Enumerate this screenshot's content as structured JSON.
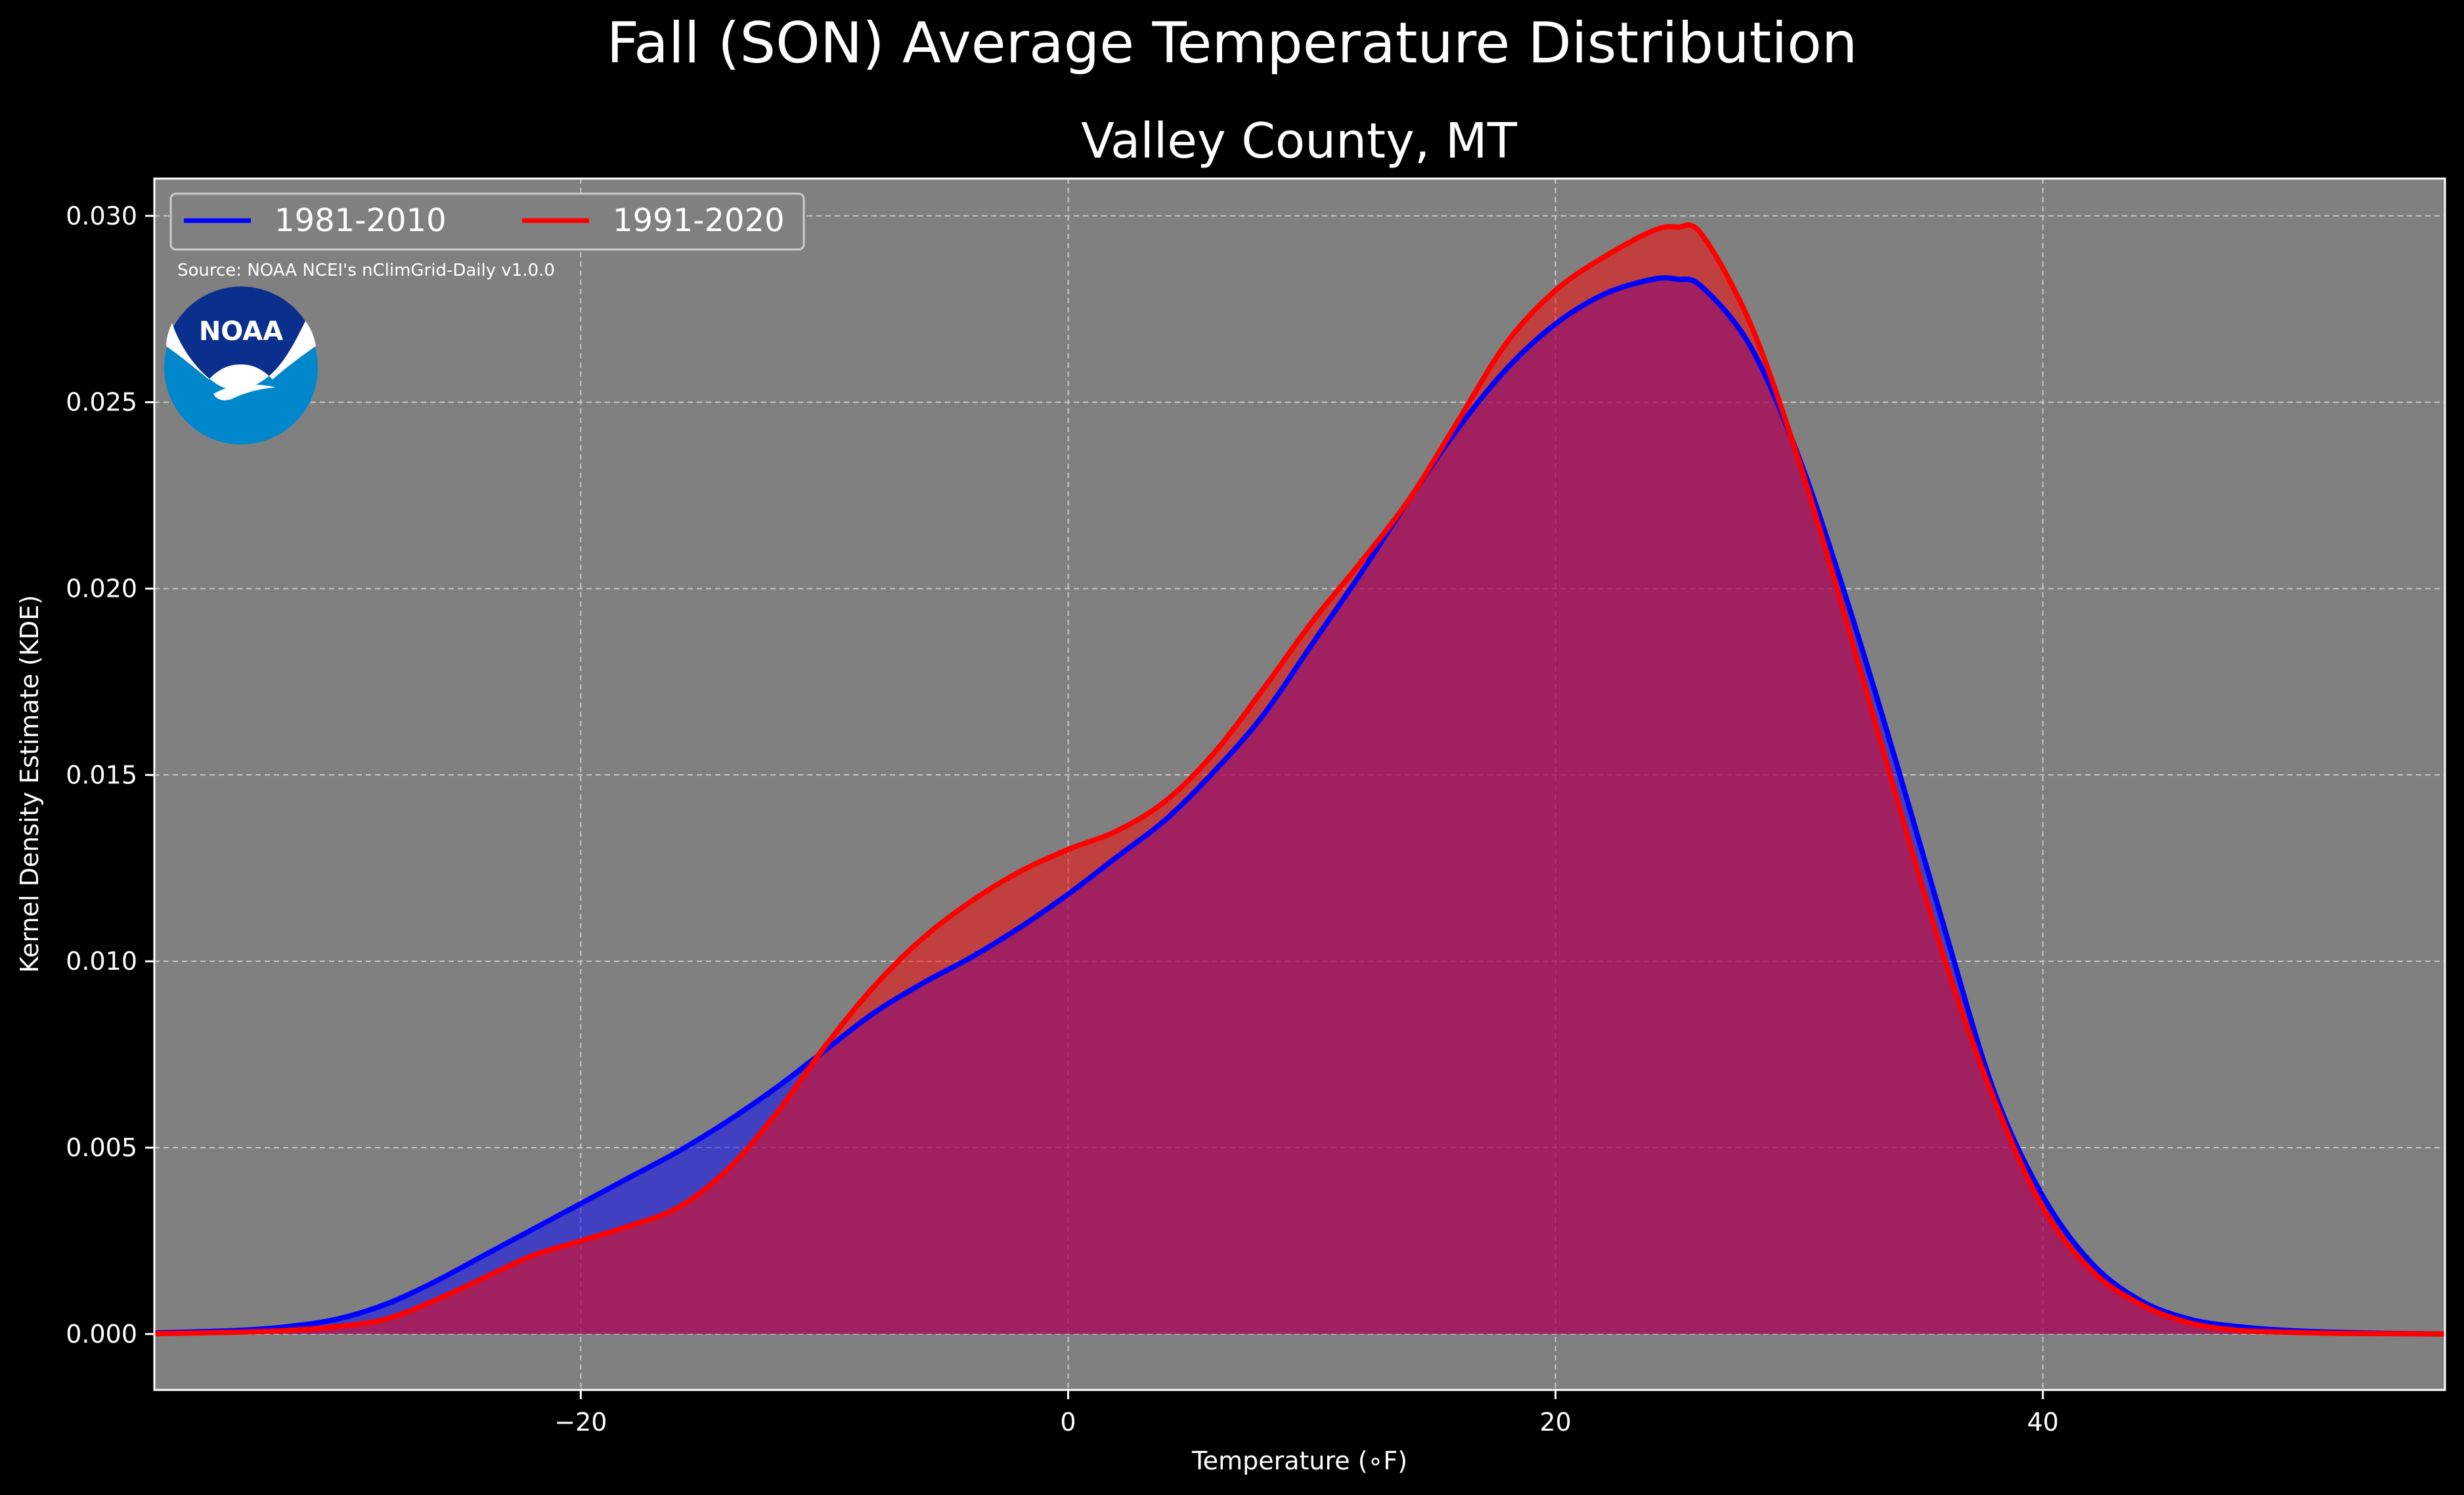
{
  "chart_data": {
    "type": "area",
    "title": "Fall (SON) Average Temperature Distribution",
    "subtitle": "Valley County, MT",
    "xlabel": "Temperature (∘F)",
    "ylabel": "Kernel Density Estimate (KDE)",
    "xlim": [
      -37.5,
      56.5
    ],
    "ylim": [
      -0.0015,
      0.031
    ],
    "xticks": [
      -20,
      0,
      20,
      40
    ],
    "xtick_labels": [
      "−20",
      "0",
      "20",
      "40"
    ],
    "yticks": [
      0.0,
      0.005,
      0.01,
      0.015,
      0.02,
      0.025,
      0.03
    ],
    "ytick_labels": [
      "0.000",
      "0.005",
      "0.010",
      "0.015",
      "0.020",
      "0.025",
      "0.030"
    ],
    "grid": true,
    "legend_position": "top-left",
    "plot_background": "#808080",
    "figure_background": "#000000",
    "annotation": "Source: NOAA NCEI's nClimGrid-Daily v1.0.0",
    "logo": {
      "text": "NOAA",
      "icon": "noaa-logo-icon"
    },
    "x": [
      -37.5,
      -34,
      -32,
      -30,
      -28,
      -26,
      -24,
      -22,
      -20,
      -18,
      -16,
      -14,
      -12,
      -10,
      -8,
      -6,
      -4,
      -2,
      0,
      2,
      4,
      6,
      8,
      10,
      12,
      14,
      16,
      18,
      20,
      22,
      24,
      25,
      26,
      28,
      30,
      32,
      34,
      36,
      38,
      40,
      42,
      44,
      46,
      48,
      50,
      52,
      54,
      56.5
    ],
    "series": [
      {
        "name": "1981-2010",
        "color": "#0000ff",
        "fill": "#0000ff",
        "values": [
          3e-05,
          0.0001,
          0.0002,
          0.0004,
          0.0008,
          0.0014,
          0.0021,
          0.0028,
          0.0035,
          0.0042,
          0.0049,
          0.0057,
          0.0066,
          0.0076,
          0.0086,
          0.0094,
          0.0101,
          0.0109,
          0.0118,
          0.0128,
          0.0138,
          0.0151,
          0.0166,
          0.0185,
          0.0204,
          0.0224,
          0.0243,
          0.0259,
          0.0271,
          0.0279,
          0.0283,
          0.0283,
          0.0281,
          0.0265,
          0.0235,
          0.0196,
          0.0153,
          0.0108,
          0.0065,
          0.0037,
          0.0019,
          0.0009,
          0.0004,
          0.0002,
          0.0001,
          5e-05,
          2e-05,
          0.0
        ]
      },
      {
        "name": "1991-2020",
        "color": "#ff0000",
        "fill": "#ff0000",
        "values": [
          1e-05,
          5e-05,
          0.0001,
          0.0002,
          0.0004,
          0.0009,
          0.0015,
          0.0021,
          0.0025,
          0.0029,
          0.0034,
          0.0044,
          0.0059,
          0.0077,
          0.0093,
          0.0106,
          0.0116,
          0.0124,
          0.013,
          0.0135,
          0.0143,
          0.0156,
          0.0173,
          0.0191,
          0.0207,
          0.0224,
          0.0245,
          0.0266,
          0.028,
          0.0289,
          0.0296,
          0.0297,
          0.0295,
          0.0271,
          0.0234,
          0.019,
          0.0144,
          0.01,
          0.0063,
          0.0034,
          0.0017,
          0.0008,
          0.0003,
          0.0001,
          5e-05,
          2e-05,
          1e-05,
          0.0
        ]
      }
    ]
  }
}
